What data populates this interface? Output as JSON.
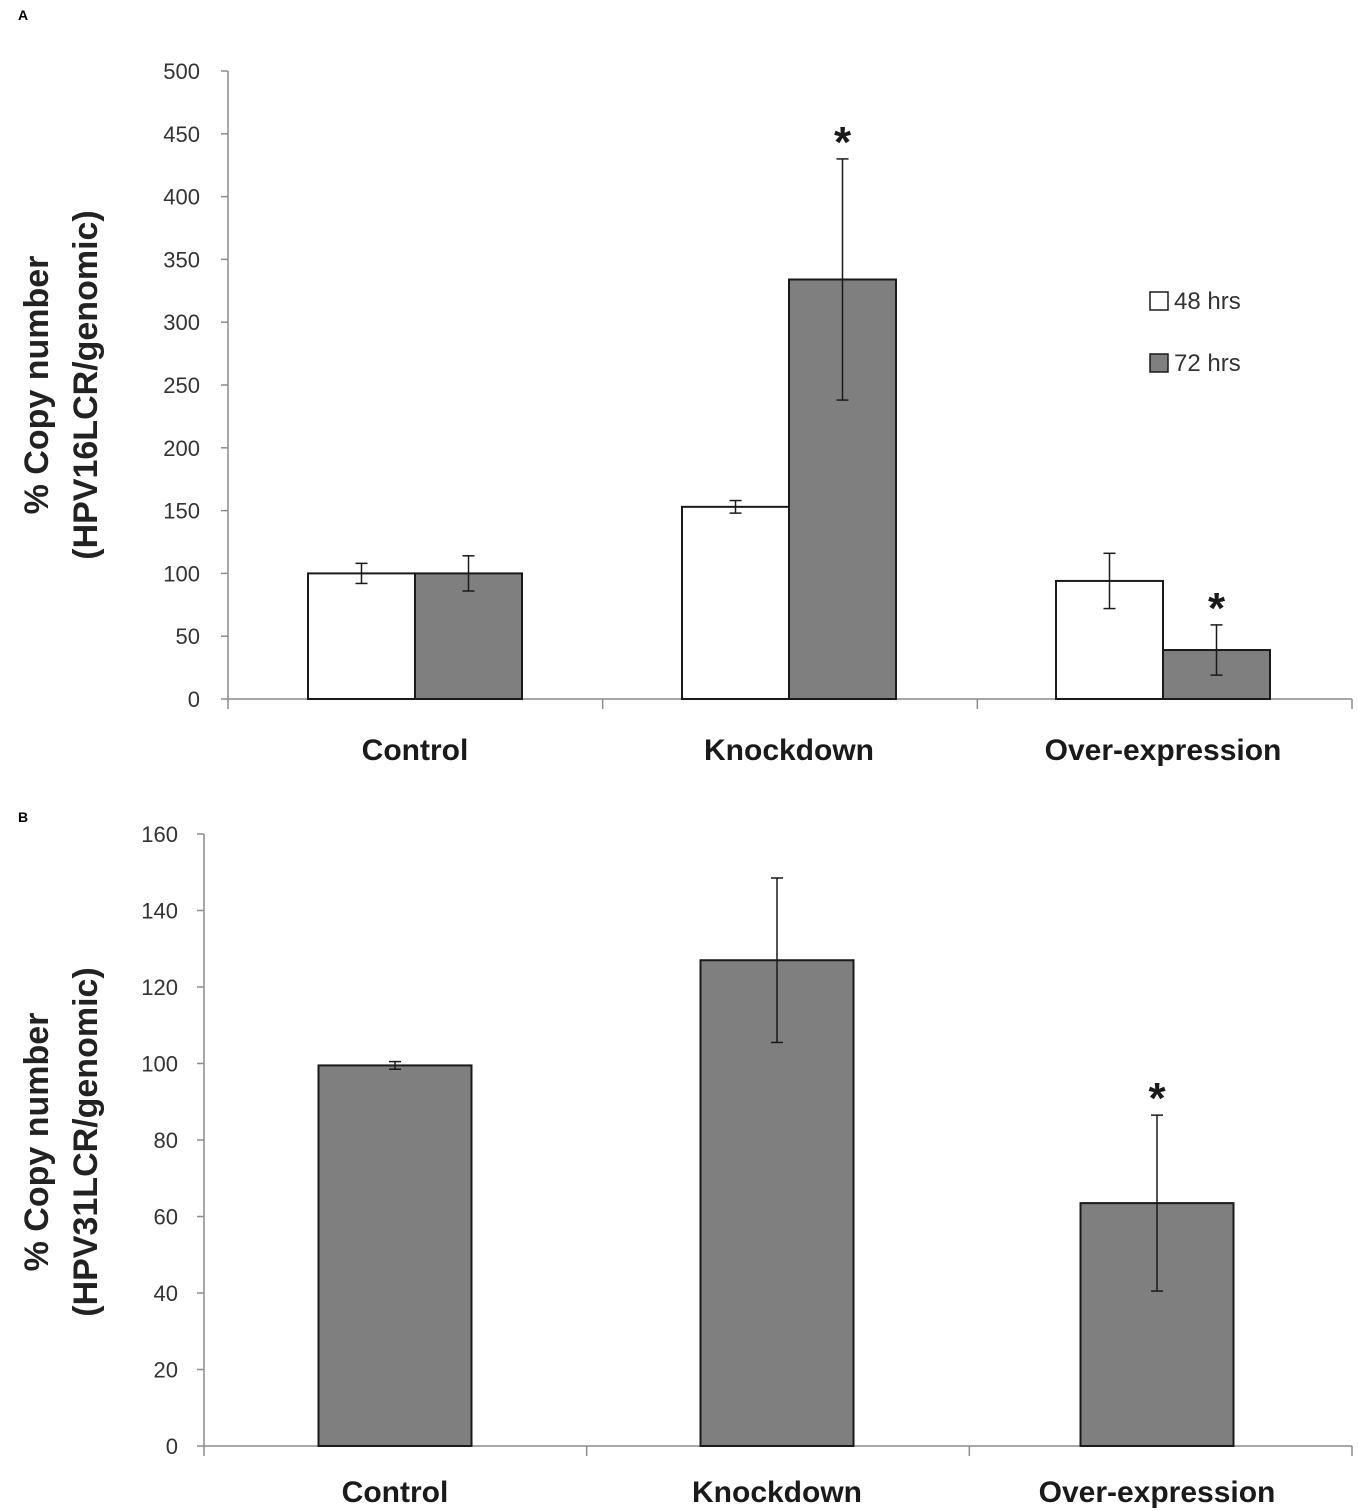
{
  "chart_data": [
    {
      "panel": "A",
      "type": "bar",
      "categories": [
        "Control",
        "Knockdown",
        "Over-expression"
      ],
      "series": [
        {
          "name": "48 hrs",
          "values": [
            100,
            153,
            94
          ],
          "errors": [
            8,
            5,
            22
          ],
          "color": "#ffffff"
        },
        {
          "name": "72 hrs",
          "values": [
            100,
            334,
            39
          ],
          "errors": [
            14,
            96,
            20
          ],
          "color": "#7f7f7f"
        }
      ],
      "significance": [
        {
          "category": "Knockdown",
          "series": "72 hrs",
          "marker": "*"
        },
        {
          "category": "Over-expression",
          "series": "72 hrs",
          "marker": "*"
        }
      ],
      "ylabel_lines": [
        "% Copy number",
        "(HPV16LCR/genomic)"
      ],
      "xlabel": "",
      "ylim": [
        0,
        500
      ],
      "yticks": [
        "0",
        "50",
        "100",
        "150",
        "200",
        "250",
        "300",
        "350",
        "400",
        "450",
        "500"
      ],
      "legend_position": "right",
      "grid": false
    },
    {
      "panel": "B",
      "type": "bar",
      "categories": [
        "Control",
        "Knockdown",
        "Over-expression"
      ],
      "series": [
        {
          "name": "",
          "values": [
            99.5,
            127,
            63.5
          ],
          "errors": [
            1,
            21.5,
            23
          ],
          "color": "#7f7f7f"
        }
      ],
      "significance": [
        {
          "category": "Over-expression",
          "series": "",
          "marker": "*"
        }
      ],
      "ylabel_lines": [
        "% Copy number",
        "(HPV31LCR/genomic)"
      ],
      "xlabel": "",
      "ylim": [
        0,
        160
      ],
      "yticks": [
        "0",
        "20",
        "40",
        "60",
        "80",
        "100",
        "120",
        "140",
        "160"
      ],
      "grid": false
    }
  ]
}
